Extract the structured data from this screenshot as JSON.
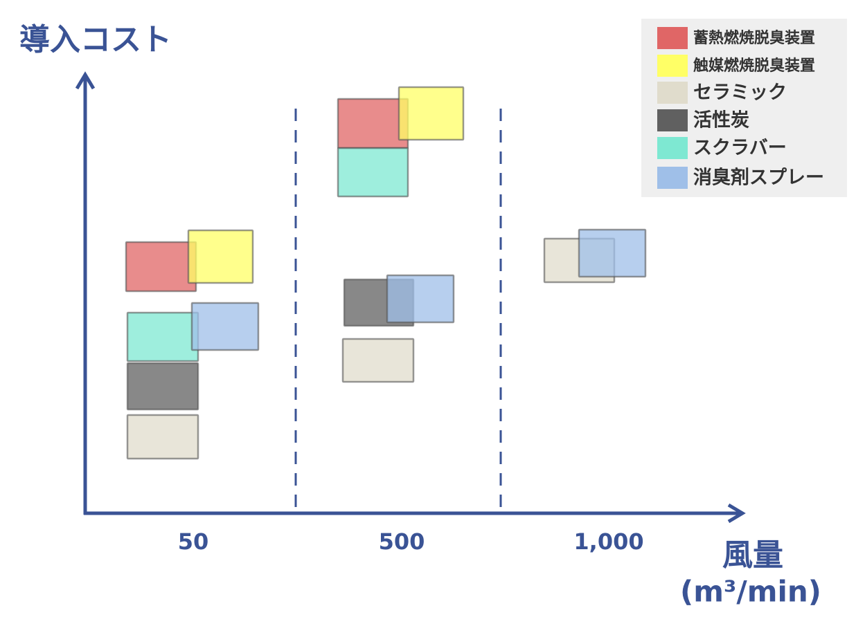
{
  "y_axis_label": "導入コスト",
  "x_axis_label": {
    "line1": "風量",
    "line2": "(m³/min)"
  },
  "x_categories": [
    "50",
    "500",
    "1,000"
  ],
  "legend": [
    {
      "label": "蓄熱燃焼脱臭装置",
      "color": "#e06666"
    },
    {
      "label": "触媒燃焼脱臭装置",
      "color": "#ffff66"
    },
    {
      "label": "セラミック",
      "color": "#e0dccc"
    },
    {
      "label": "活性炭",
      "color": "#606060"
    },
    {
      "label": "スクラバー",
      "color": "#7ee8d2"
    },
    {
      "label": "消臭剤スプレー",
      "color": "#9fbfe8"
    }
  ]
}
